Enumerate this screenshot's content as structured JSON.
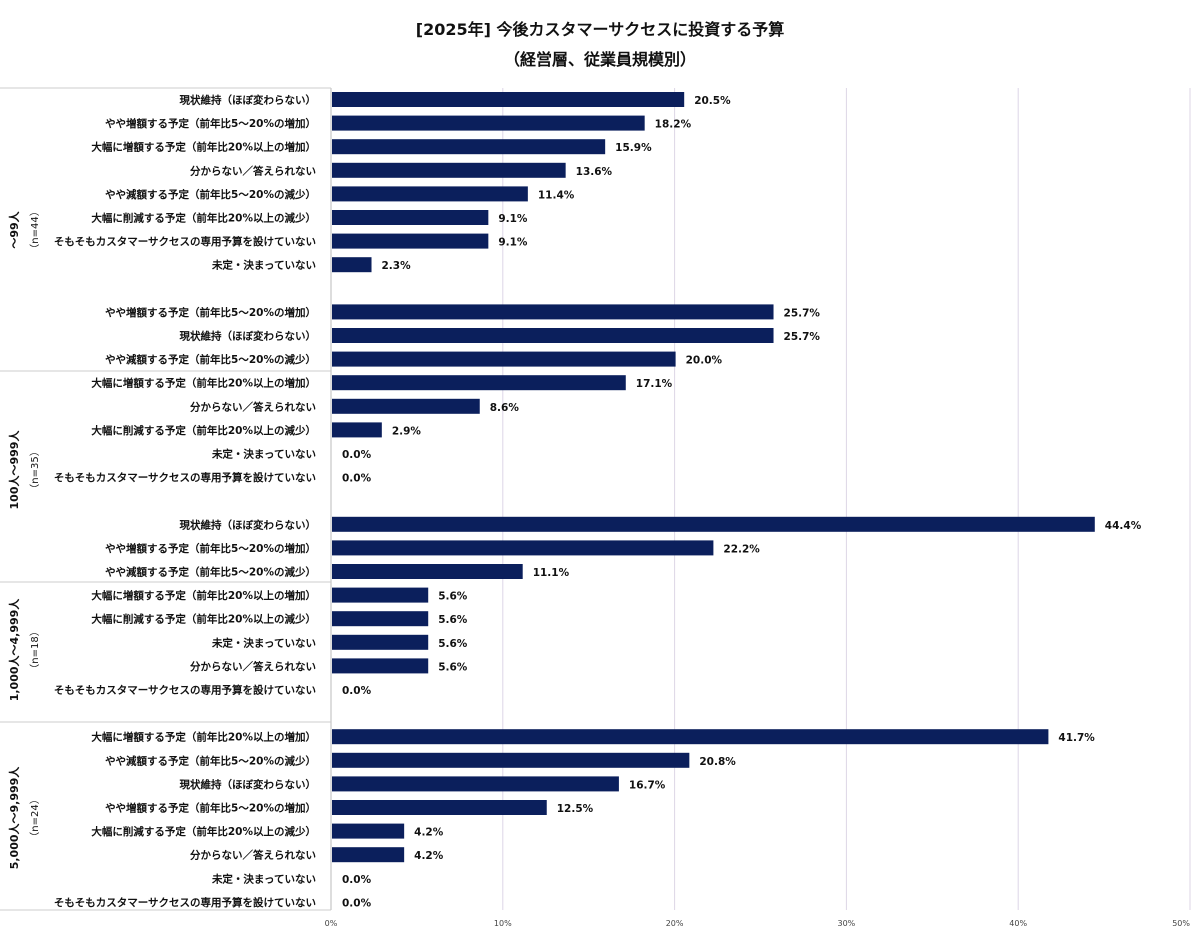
{
  "header": {
    "title_line1": "[2025年] 今後カスタマーサクセスに投資する予算",
    "title_line2": "（経営層、従業員規模別）"
  },
  "colors": {
    "bar": "#0b1f5c",
    "grid": "#ddd6e6",
    "text": "#111111"
  },
  "chart_data": {
    "type": "bar",
    "orientation": "horizontal",
    "title": "[2025年] 今後カスタマーサクセスに投資する予算（経営層、従業員規模別）",
    "xlim": [
      0,
      50
    ],
    "xticks": [
      "0%",
      "10%",
      "20%",
      "30%",
      "40%",
      "50%"
    ],
    "grid": true,
    "groups": [
      {
        "label": "～99人",
        "n": "（n=44）",
        "categories": [
          "現状維持（ほぼ変わらない）",
          "やや増額する予定（前年比5～20%の増加）",
          "大幅に増額する予定（前年比20%以上の増加）",
          "分からない／答えられない",
          "やや減額する予定（前年比5～20%の減少）",
          "大幅に削減する予定（前年比20%以上の減少）",
          "そもそもカスタマーサクセスの専用予算を設けていない",
          "未定・決まっていない"
        ],
        "values": [
          20.5,
          18.2,
          15.9,
          13.6,
          11.4,
          9.1,
          9.1,
          2.3
        ],
        "labels": [
          "20.5%",
          "18.2%",
          "15.9%",
          "13.6%",
          "11.4%",
          "9.1%",
          "9.1%",
          "2.3%"
        ]
      },
      {
        "label": "100人～999人",
        "n": "（n=35）",
        "categories": [
          "やや増額する予定（前年比5～20%の増加）",
          "現状維持（ほぼ変わらない）",
          "やや減額する予定（前年比5～20%の減少）",
          "大幅に増額する予定（前年比20%以上の増加）",
          "分からない／答えられない",
          "大幅に削減する予定（前年比20%以上の減少）",
          "未定・決まっていない",
          "そもそもカスタマーサクセスの専用予算を設けていない"
        ],
        "values": [
          25.7,
          25.7,
          20.0,
          17.1,
          8.6,
          2.9,
          0.0,
          0.0
        ],
        "labels": [
          "25.7%",
          "25.7%",
          "20.0%",
          "17.1%",
          "8.6%",
          "2.9%",
          "0.0%",
          "0.0%"
        ]
      },
      {
        "label": "1,000人～4,999人",
        "n": "（n=18）",
        "categories": [
          "現状維持（ほぼ変わらない）",
          "やや増額する予定（前年比5～20%の増加）",
          "やや減額する予定（前年比5～20%の減少）",
          "大幅に増額する予定（前年比20%以上の増加）",
          "大幅に削減する予定（前年比20%以上の減少）",
          "未定・決まっていない",
          "分からない／答えられない",
          "そもそもカスタマーサクセスの専用予算を設けていない"
        ],
        "values": [
          44.4,
          22.2,
          11.1,
          5.6,
          5.6,
          5.6,
          5.6,
          0.0
        ],
        "labels": [
          "44.4%",
          "22.2%",
          "11.1%",
          "5.6%",
          "5.6%",
          "5.6%",
          "5.6%",
          "0.0%"
        ]
      },
      {
        "label": "5,000人～9,999人",
        "n": "（n=24）",
        "categories": [
          "大幅に増額する予定（前年比20%以上の増加）",
          "やや減額する予定（前年比5～20%の減少）",
          "現状維持（ほぼ変わらない）",
          "やや増額する予定（前年比5～20%の増加）",
          "大幅に削減する予定（前年比20%以上の減少）",
          "分からない／答えられない",
          "未定・決まっていない",
          "そもそもカスタマーサクセスの専用予算を設けていない"
        ],
        "values": [
          41.7,
          20.8,
          16.7,
          12.5,
          4.2,
          4.2,
          0.0,
          0.0
        ],
        "labels": [
          "41.7%",
          "20.8%",
          "16.7%",
          "12.5%",
          "4.2%",
          "4.2%",
          "0.0%",
          "0.0%"
        ]
      }
    ]
  }
}
